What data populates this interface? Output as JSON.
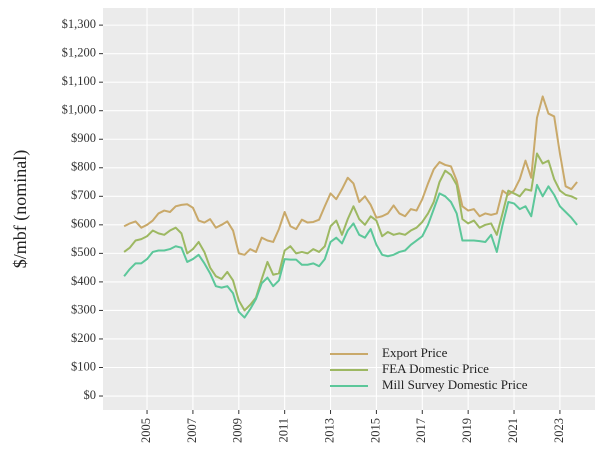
{
  "chart_data": {
    "type": "line",
    "y_label": "$/mbf (nominal)",
    "xlim": [
      2003.08,
      2024.53
    ],
    "ylim": [
      -49,
      1360
    ],
    "xticks": [
      2005,
      2007,
      2009,
      2011,
      2013,
      2015,
      2017,
      2019,
      2021,
      2023
    ],
    "yticks": [
      {
        "value": 0,
        "label": "$0"
      },
      {
        "value": 100,
        "label": "$100"
      },
      {
        "value": 200,
        "label": "$200"
      },
      {
        "value": 300,
        "label": "$300"
      },
      {
        "value": 400,
        "label": "$400"
      },
      {
        "value": 500,
        "label": "$500"
      },
      {
        "value": 600,
        "label": "$600"
      },
      {
        "value": 700,
        "label": "$700"
      },
      {
        "value": 800,
        "label": "$800"
      },
      {
        "value": 900,
        "label": "$900"
      },
      {
        "value": 1000,
        "label": "$1,000"
      },
      {
        "value": 1100,
        "label": "$1,100"
      },
      {
        "value": 1200,
        "label": "$1,200"
      },
      {
        "value": 1300,
        "label": "$1,300"
      }
    ],
    "grid": true,
    "legend": "bottom",
    "x": [
      2004,
      2004.25,
      2004.5,
      2004.75,
      2005,
      2005.25,
      2005.5,
      2005.75,
      2006,
      2006.25,
      2006.5,
      2006.75,
      2007,
      2007.25,
      2007.5,
      2007.75,
      2008,
      2008.25,
      2008.5,
      2008.75,
      2009,
      2009.25,
      2009.5,
      2009.75,
      2010,
      2010.25,
      2010.5,
      2010.75,
      2011,
      2011.25,
      2011.5,
      2011.75,
      2012,
      2012.25,
      2012.5,
      2012.75,
      2013,
      2013.25,
      2013.5,
      2013.75,
      2014,
      2014.25,
      2014.5,
      2014.75,
      2015,
      2015.25,
      2015.5,
      2015.75,
      2016,
      2016.25,
      2016.5,
      2016.75,
      2017,
      2017.25,
      2017.5,
      2017.75,
      2018,
      2018.25,
      2018.5,
      2018.75,
      2019,
      2019.25,
      2019.5,
      2019.75,
      2020,
      2020.25,
      2020.5,
      2020.75,
      2021,
      2021.25,
      2021.5,
      2021.75,
      2022,
      2022.25,
      2022.5,
      2022.75,
      2023,
      2023.25,
      2023.5,
      2023.75
    ],
    "series": [
      {
        "name": "Export Price",
        "color": "#c9a96a",
        "values": [
          595,
          605,
          612,
          590,
          600,
          615,
          640,
          650,
          645,
          665,
          670,
          672,
          660,
          615,
          608,
          620,
          590,
          600,
          612,
          580,
          500,
          495,
          515,
          505,
          555,
          545,
          540,
          585,
          645,
          595,
          585,
          618,
          608,
          610,
          618,
          665,
          710,
          690,
          725,
          765,
          745,
          680,
          700,
          670,
          625,
          630,
          640,
          668,
          640,
          630,
          655,
          650,
          690,
          745,
          795,
          820,
          810,
          805,
          755,
          665,
          650,
          655,
          630,
          640,
          635,
          640,
          720,
          705,
          720,
          760,
          825,
          765,
          975,
          1050,
          990,
          980,
          850,
          735,
          725,
          750
        ]
      },
      {
        "name": "FEA Domestic Price",
        "color": "#9db862",
        "values": [
          505,
          520,
          545,
          550,
          560,
          580,
          570,
          565,
          580,
          590,
          570,
          500,
          515,
          540,
          505,
          450,
          420,
          410,
          435,
          405,
          335,
          300,
          320,
          345,
          410,
          470,
          425,
          430,
          510,
          525,
          500,
          505,
          500,
          515,
          505,
          525,
          595,
          615,
          565,
          620,
          665,
          620,
          600,
          630,
          615,
          560,
          575,
          565,
          570,
          565,
          580,
          590,
          610,
          640,
          680,
          750,
          790,
          775,
          740,
          620,
          605,
          615,
          590,
          600,
          605,
          565,
          640,
          720,
          710,
          700,
          725,
          720,
          850,
          815,
          825,
          760,
          720,
          705,
          700,
          690
        ]
      },
      {
        "name": "Mill Survey Domestic Price",
        "color": "#5cc79a",
        "values": [
          420,
          445,
          465,
          465,
          480,
          505,
          510,
          510,
          515,
          525,
          520,
          470,
          480,
          495,
          465,
          430,
          385,
          380,
          385,
          360,
          295,
          275,
          305,
          340,
          395,
          415,
          385,
          405,
          480,
          478,
          478,
          460,
          460,
          465,
          455,
          480,
          540,
          555,
          535,
          580,
          605,
          565,
          555,
          585,
          530,
          495,
          490,
          495,
          505,
          510,
          530,
          545,
          560,
          600,
          655,
          710,
          700,
          680,
          640,
          545,
          545,
          545,
          543,
          540,
          565,
          505,
          600,
          680,
          675,
          655,
          665,
          630,
          740,
          700,
          735,
          705,
          665,
          645,
          625,
          600
        ]
      }
    ]
  }
}
